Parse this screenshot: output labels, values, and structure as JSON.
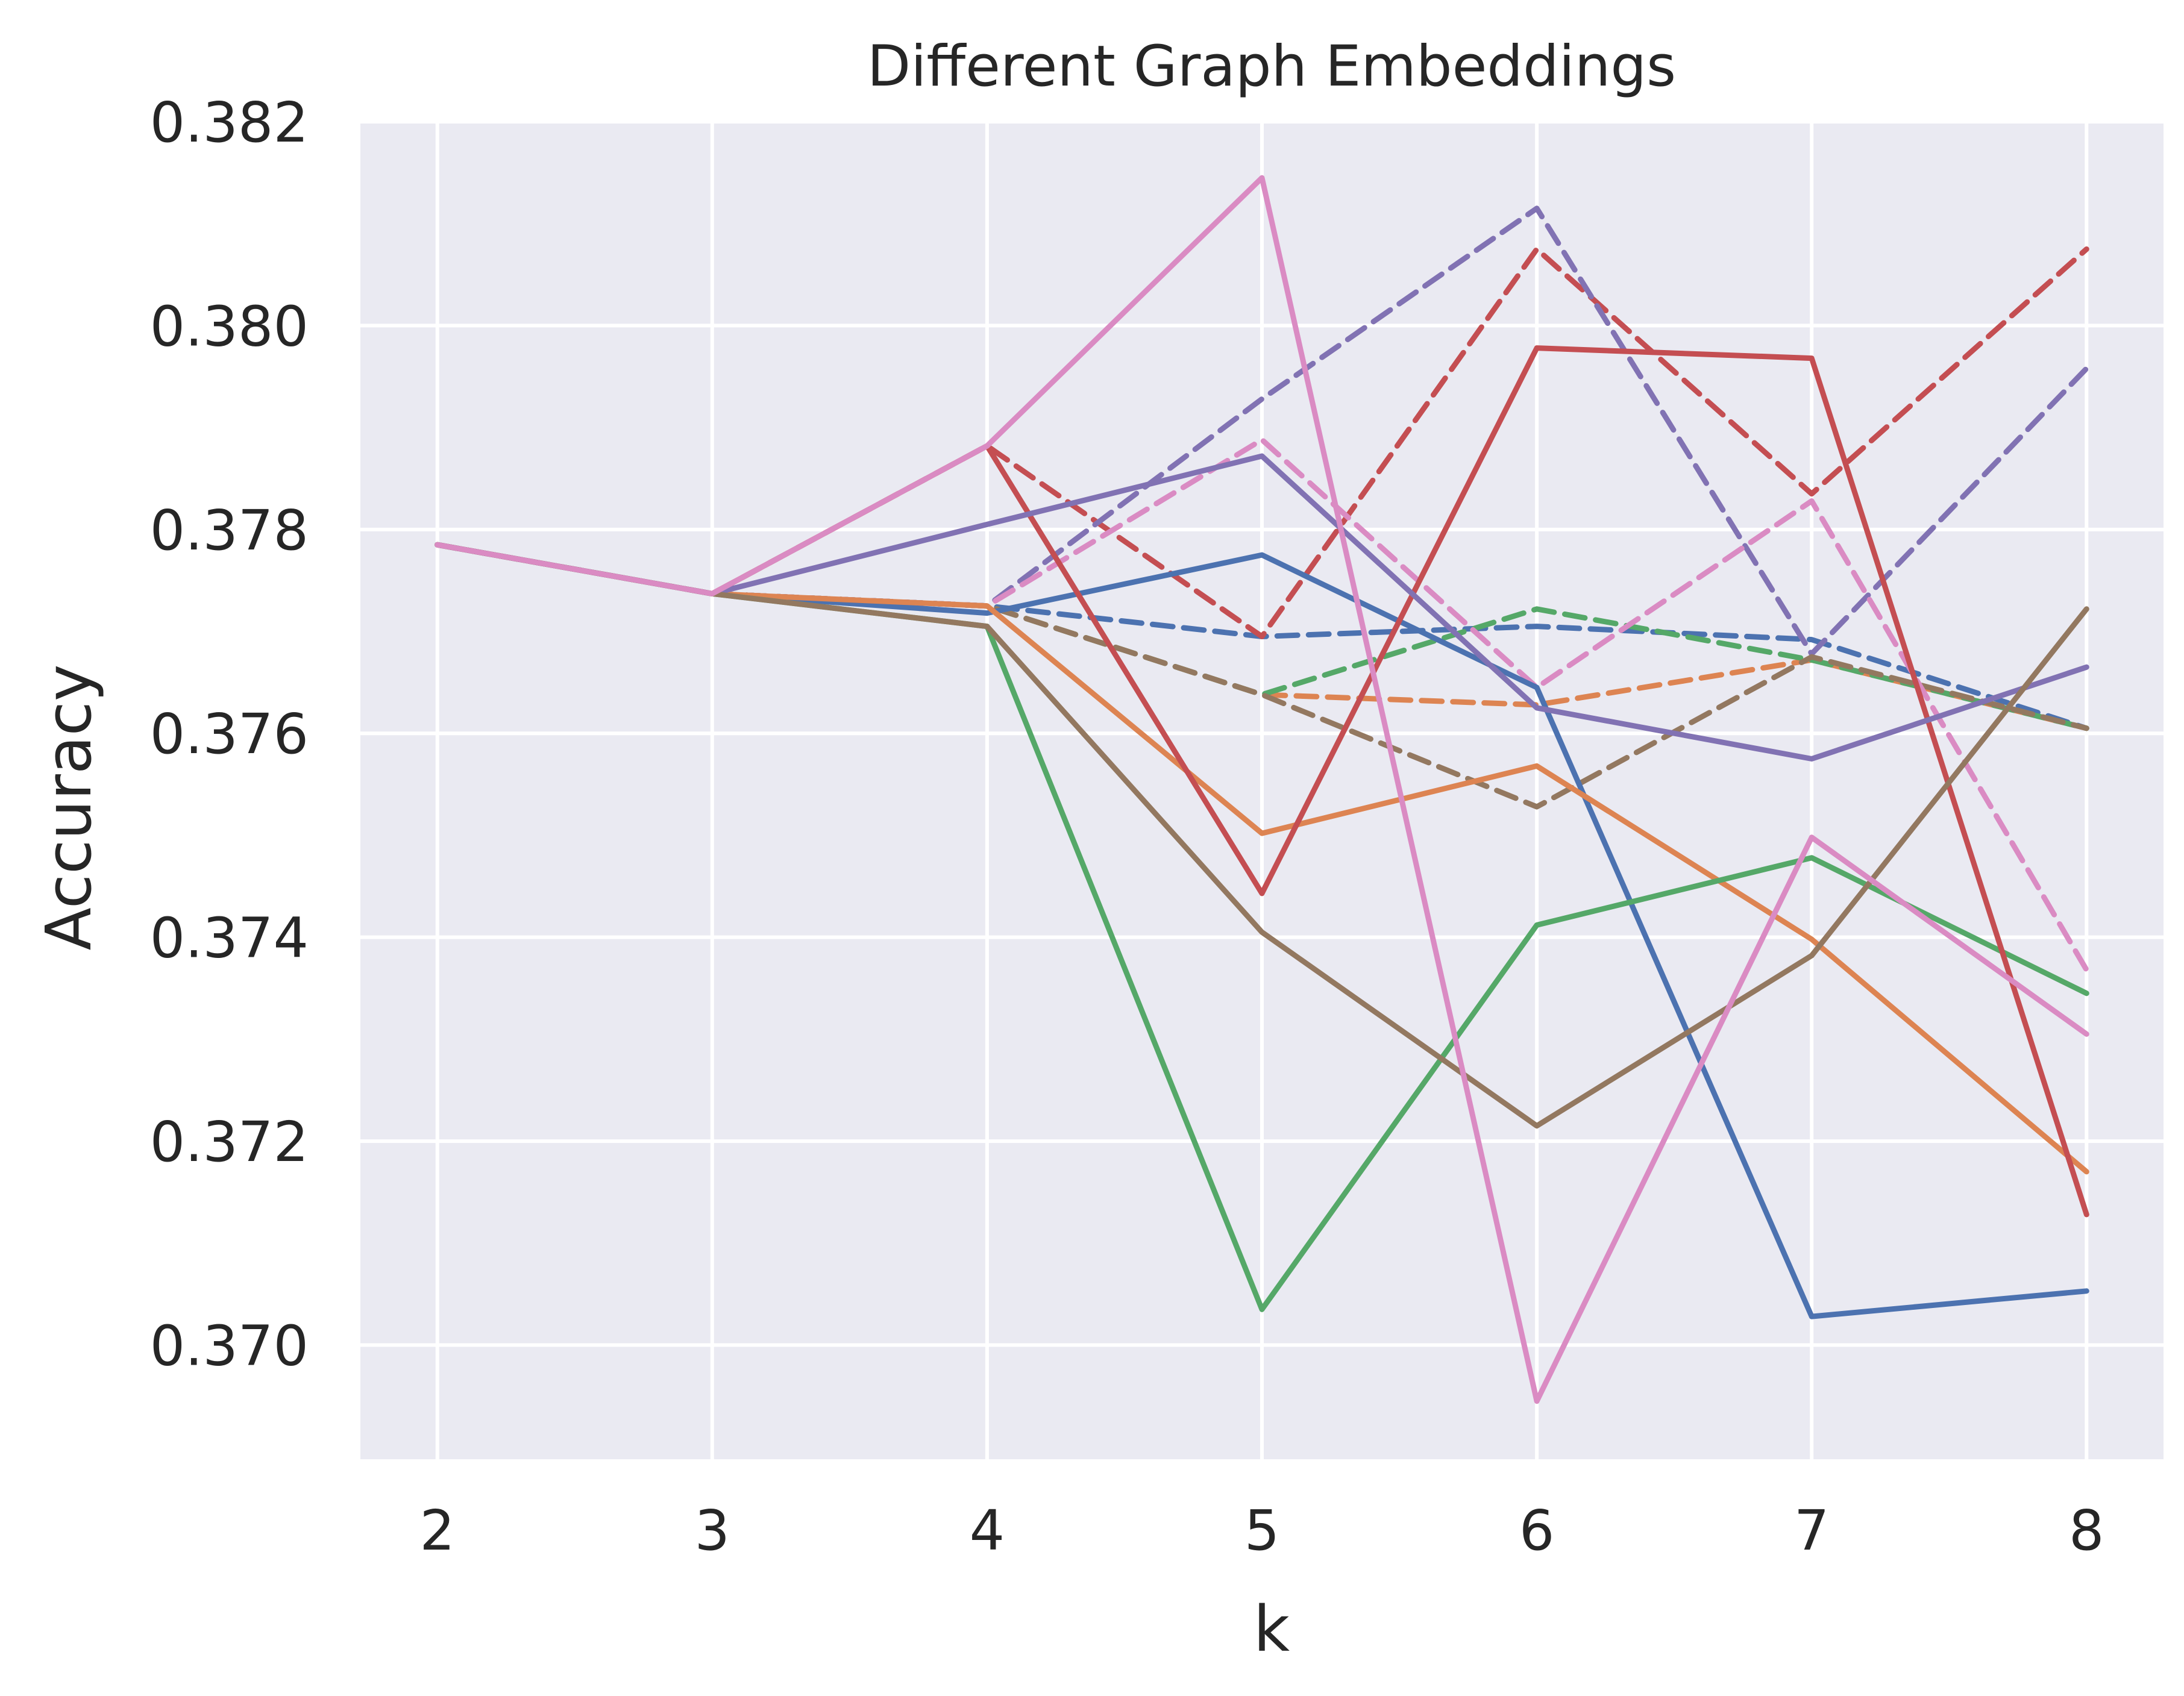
{
  "chart_data": {
    "type": "line",
    "title": "Different Graph Embeddings",
    "xlabel": "k",
    "ylabel": "Accuracy",
    "x": [
      2,
      3,
      4,
      5,
      6,
      7,
      8
    ],
    "xlim": [
      1.72,
      8.28
    ],
    "ylim": [
      0.36888,
      0.382
    ],
    "yticks": [
      0.37,
      0.372,
      0.374,
      0.376,
      0.378,
      0.38,
      0.382
    ],
    "ytick_labels": [
      "0.370",
      "0.372",
      "0.374",
      "0.376",
      "0.378",
      "0.380",
      "0.382"
    ],
    "xtick_labels": [
      "2",
      "3",
      "4",
      "5",
      "6",
      "7",
      "8"
    ],
    "grid": true,
    "background": "#eaeaf2",
    "series": [
      {
        "color": "#4c72b0",
        "dash": false,
        "values": [
          0.37785,
          0.37737,
          0.37718,
          0.37775,
          0.37645,
          0.37028,
          0.37053
        ]
      },
      {
        "color": "#dd8452",
        "dash": false,
        "values": [
          0.37785,
          0.37737,
          0.37725,
          0.37502,
          0.37568,
          0.37398,
          0.3717
        ]
      },
      {
        "color": "#55a868",
        "dash": false,
        "values": [
          0.37785,
          0.37737,
          0.37705,
          0.37035,
          0.37412,
          0.37478,
          0.37345
        ]
      },
      {
        "color": "#c44e52",
        "dash": false,
        "values": [
          0.37785,
          0.37737,
          0.37882,
          0.37443,
          0.37978,
          0.37968,
          0.37128
        ]
      },
      {
        "color": "#8172b3",
        "dash": false,
        "values": [
          0.37785,
          0.37737,
          0.37805,
          0.37872,
          0.37625,
          0.37575,
          0.37665
        ]
      },
      {
        "color": "#937860",
        "dash": false,
        "values": [
          0.37785,
          0.37737,
          0.37705,
          0.37405,
          0.37215,
          0.37382,
          0.37722
        ]
      },
      {
        "color": "#da8bc3",
        "dash": false,
        "values": [
          0.37785,
          0.37737,
          0.37882,
          0.38145,
          0.36945,
          0.37498,
          0.37305
        ]
      },
      {
        "color": "#4c72b0",
        "dash": true,
        "values": [
          0.37785,
          0.37737,
          0.37725,
          0.37695,
          0.37705,
          0.37692,
          0.37605
        ]
      },
      {
        "color": "#dd8452",
        "dash": true,
        "values": [
          0.37785,
          0.37737,
          0.37725,
          0.37638,
          0.37628,
          0.37672,
          0.37605
        ]
      },
      {
        "color": "#55a868",
        "dash": true,
        "values": [
          0.37785,
          0.37737,
          0.37725,
          0.37638,
          0.37722,
          0.37672,
          0.37605
        ]
      },
      {
        "color": "#c44e52",
        "dash": true,
        "values": [
          0.37785,
          0.37737,
          0.37882,
          0.37695,
          0.38075,
          0.37835,
          0.38075
        ]
      },
      {
        "color": "#8172b3",
        "dash": true,
        "values": [
          0.37785,
          0.37737,
          0.37725,
          0.37928,
          0.38115,
          0.37678,
          0.37958
        ]
      },
      {
        "color": "#937860",
        "dash": true,
        "values": [
          0.37785,
          0.37737,
          0.37725,
          0.37638,
          0.37528,
          0.37675,
          0.37605
        ]
      },
      {
        "color": "#da8bc3",
        "dash": true,
        "values": [
          0.37785,
          0.37737,
          0.37725,
          0.37888,
          0.37645,
          0.37828,
          0.37368
        ]
      }
    ]
  }
}
